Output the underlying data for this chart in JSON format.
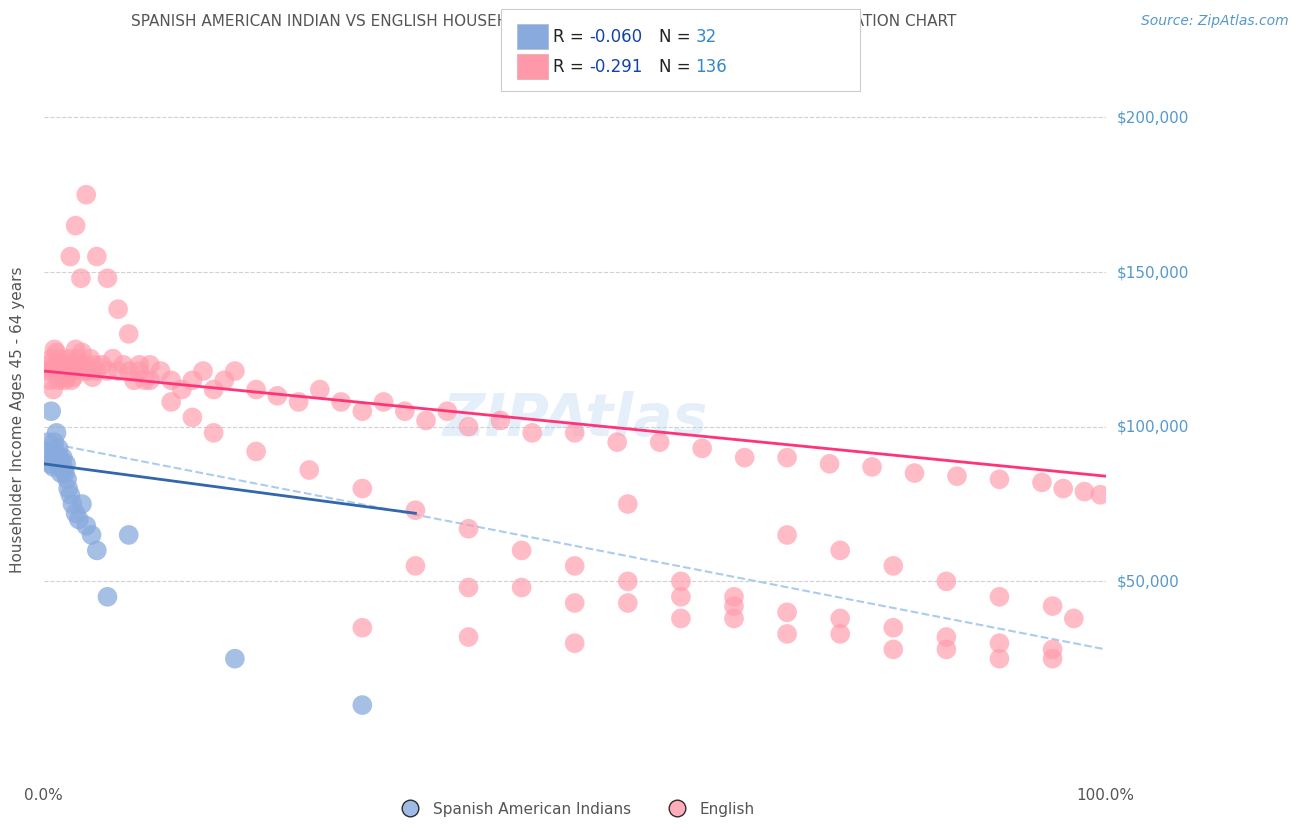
{
  "title": "SPANISH AMERICAN INDIAN VS ENGLISH HOUSEHOLDER INCOME AGES 45 - 64 YEARS CORRELATION CHART",
  "source_text": "Source: ZipAtlas.com",
  "ylabel": "Householder Income Ages 45 - 64 years",
  "xlim": [
    0.0,
    1.0
  ],
  "ylim": [
    -15000,
    220000
  ],
  "ytick_labels": [
    "$50,000",
    "$100,000",
    "$150,000",
    "$200,000"
  ],
  "ytick_values": [
    50000,
    100000,
    150000,
    200000
  ],
  "background_color": "#ffffff",
  "grid_color": "#cccccc",
  "blue_color": "#88aadd",
  "pink_color": "#ff99aa",
  "blue_line_color": "#3366aa",
  "pink_line_color": "#ff3377",
  "blue_dash_color": "#aaccee",
  "title_color": "#555555",
  "source_color": "#5599cc",
  "r_color": "#1144aa",
  "n_color": "#3388cc",
  "blue_scatter_x": [
    0.004,
    0.005,
    0.006,
    0.007,
    0.008,
    0.009,
    0.01,
    0.011,
    0.012,
    0.013,
    0.014,
    0.015,
    0.016,
    0.017,
    0.018,
    0.019,
    0.02,
    0.021,
    0.022,
    0.023,
    0.025,
    0.027,
    0.03,
    0.033,
    0.036,
    0.04,
    0.045,
    0.05,
    0.06,
    0.08,
    0.18,
    0.3
  ],
  "blue_scatter_y": [
    95000,
    92000,
    88000,
    105000,
    90000,
    87000,
    95000,
    92000,
    98000,
    88000,
    93000,
    90000,
    85000,
    88000,
    90000,
    86000,
    85000,
    88000,
    83000,
    80000,
    78000,
    75000,
    72000,
    70000,
    75000,
    68000,
    65000,
    60000,
    45000,
    65000,
    25000,
    10000
  ],
  "pink_scatter_x": [
    0.004,
    0.005,
    0.006,
    0.007,
    0.008,
    0.009,
    0.01,
    0.011,
    0.012,
    0.013,
    0.014,
    0.015,
    0.016,
    0.017,
    0.018,
    0.019,
    0.02,
    0.021,
    0.022,
    0.023,
    0.024,
    0.025,
    0.026,
    0.027,
    0.028,
    0.03,
    0.032,
    0.034,
    0.036,
    0.038,
    0.04,
    0.042,
    0.044,
    0.046,
    0.048,
    0.05,
    0.055,
    0.06,
    0.065,
    0.07,
    0.075,
    0.08,
    0.085,
    0.09,
    0.095,
    0.1,
    0.11,
    0.12,
    0.13,
    0.14,
    0.15,
    0.16,
    0.17,
    0.18,
    0.2,
    0.22,
    0.24,
    0.26,
    0.28,
    0.3,
    0.32,
    0.34,
    0.36,
    0.38,
    0.4,
    0.43,
    0.46,
    0.5,
    0.54,
    0.58,
    0.62,
    0.66,
    0.7,
    0.74,
    0.78,
    0.82,
    0.86,
    0.9,
    0.94,
    0.96,
    0.98,
    0.995,
    0.025,
    0.03,
    0.035,
    0.04,
    0.05,
    0.06,
    0.07,
    0.08,
    0.09,
    0.1,
    0.12,
    0.14,
    0.16,
    0.2,
    0.25,
    0.3,
    0.35,
    0.4,
    0.45,
    0.5,
    0.55,
    0.6,
    0.65,
    0.7,
    0.75,
    0.8,
    0.85,
    0.9,
    0.95,
    0.97,
    0.3,
    0.4,
    0.5,
    0.55,
    0.6,
    0.65,
    0.7,
    0.75,
    0.8,
    0.85,
    0.9,
    0.95,
    0.4,
    0.5,
    0.6,
    0.7,
    0.8,
    0.9,
    0.35,
    0.45,
    0.55,
    0.65,
    0.75,
    0.85,
    0.95
  ],
  "pink_scatter_y": [
    118000,
    120000,
    115000,
    122000,
    118000,
    112000,
    125000,
    120000,
    124000,
    118000,
    115000,
    122000,
    119000,
    116000,
    120000,
    118000,
    115000,
    120000,
    116000,
    119000,
    122000,
    118000,
    115000,
    120000,
    116000,
    125000,
    122000,
    120000,
    124000,
    118000,
    120000,
    118000,
    122000,
    116000,
    120000,
    118000,
    120000,
    118000,
    122000,
    118000,
    120000,
    118000,
    115000,
    118000,
    115000,
    120000,
    118000,
    115000,
    112000,
    115000,
    118000,
    112000,
    115000,
    118000,
    112000,
    110000,
    108000,
    112000,
    108000,
    105000,
    108000,
    105000,
    102000,
    105000,
    100000,
    102000,
    98000,
    98000,
    95000,
    95000,
    93000,
    90000,
    90000,
    88000,
    87000,
    85000,
    84000,
    83000,
    82000,
    80000,
    79000,
    78000,
    155000,
    165000,
    148000,
    175000,
    155000,
    148000,
    138000,
    130000,
    120000,
    115000,
    108000,
    103000,
    98000,
    92000,
    86000,
    80000,
    73000,
    67000,
    60000,
    55000,
    50000,
    45000,
    42000,
    65000,
    60000,
    55000,
    50000,
    45000,
    42000,
    38000,
    35000,
    32000,
    30000,
    75000,
    50000,
    45000,
    40000,
    38000,
    35000,
    32000,
    30000,
    28000,
    48000,
    43000,
    38000,
    33000,
    28000,
    25000,
    55000,
    48000,
    43000,
    38000,
    33000,
    28000,
    25000
  ]
}
